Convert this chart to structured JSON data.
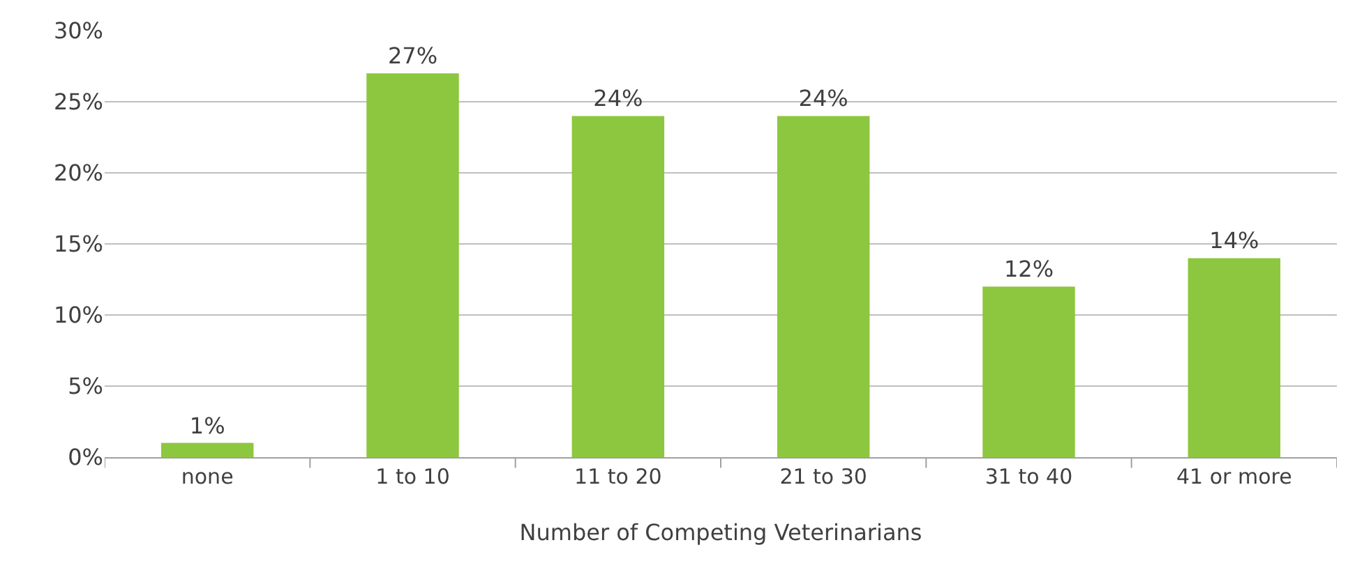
{
  "chart_data": {
    "type": "bar",
    "xlabel": "Number of Competing Veterinarians",
    "categories": [
      "none",
      "1 to 10",
      "11 to 20",
      "21 to 30",
      "31 to 40",
      "41 or more"
    ],
    "values": [
      1,
      27,
      24,
      24,
      12,
      14
    ],
    "value_labels": [
      "1%",
      "27%",
      "24%",
      "24%",
      "12%",
      "14%"
    ],
    "color": "#8dc63f",
    "ylim": [
      0,
      30
    ],
    "yticks": [
      {
        "value": 0,
        "label": "0%"
      },
      {
        "value": 5,
        "label": "5%"
      },
      {
        "value": 10,
        "label": "10%"
      },
      {
        "value": 15,
        "label": "15%"
      },
      {
        "value": 20,
        "label": "20%"
      },
      {
        "value": 25,
        "label": "25%"
      },
      {
        "value": 30,
        "label": "30%"
      }
    ],
    "grid": "y",
    "legend": false
  }
}
